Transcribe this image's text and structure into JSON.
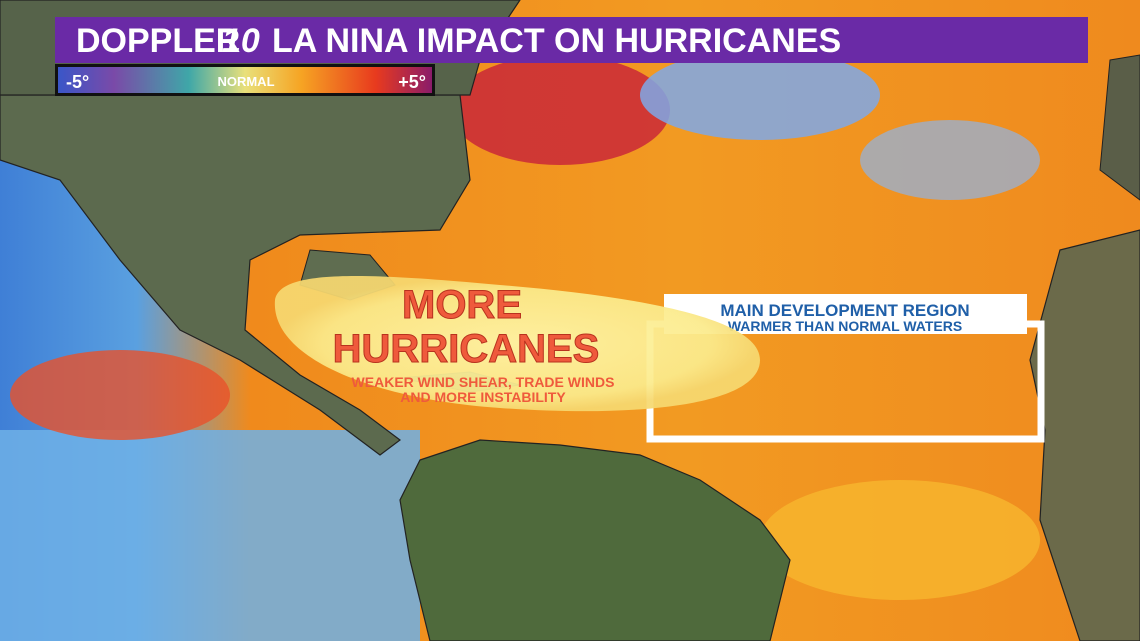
{
  "header": {
    "brand": "DOPPLER",
    "brand_number": "10",
    "title": "LA NINA IMPACT ON HURRICANES"
  },
  "legend": {
    "min_label": "-5°",
    "mid_label": "NORMAL",
    "max_label": "+5°"
  },
  "callout": {
    "headline": [
      "MORE",
      "HURRICANES"
    ],
    "details": [
      "WEAKER WIND SHEAR, TRADE WINDS",
      "AND MORE INSTABILITY"
    ]
  },
  "region": {
    "title": "MAIN DEVELOPMENT REGION",
    "subtitle": "WARMER THAN NORMAL WATERS"
  }
}
